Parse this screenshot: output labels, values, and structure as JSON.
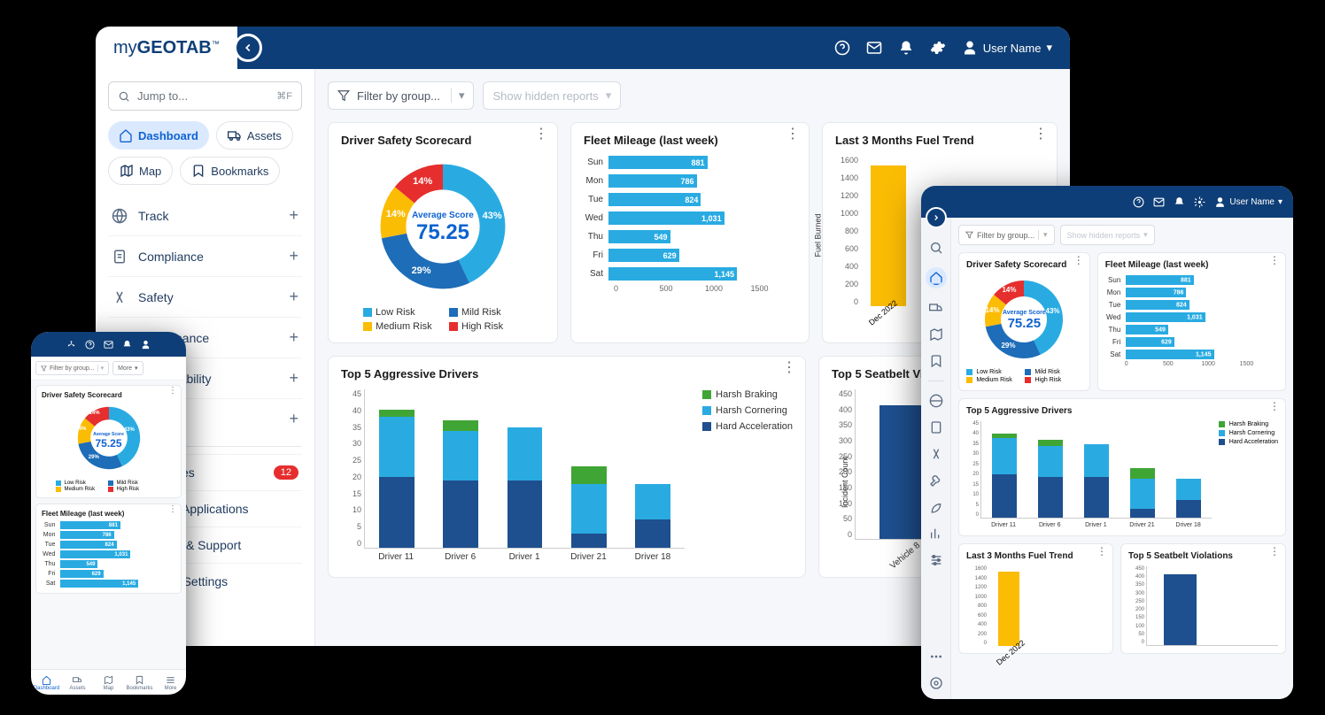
{
  "colors": {
    "brand": "#0e3e77",
    "accent": "#0e62d1",
    "lowRisk": "#29abe2",
    "mildRisk": "#1e6db8",
    "mediumRisk": "#fbbc04",
    "highRisk": "#e62e2e",
    "harshBraking": "#3fa535",
    "harshCornering": "#29abe2",
    "hardAccel": "#1e4f8f",
    "fuelBar": "#fbbc04",
    "background": "#f5f7fa"
  },
  "logo": {
    "prefix": "my",
    "main": "GEOTAB",
    "tm": "™"
  },
  "topbar": {
    "userName": "User Name"
  },
  "sidebar": {
    "searchPlaceholder": "Jump to...",
    "searchKbd": "⌘F",
    "tabs": [
      {
        "label": "Dashboard",
        "icon": "home",
        "active": true
      },
      {
        "label": "Assets",
        "icon": "truck",
        "active": false
      },
      {
        "label": "Map",
        "icon": "map",
        "active": false
      },
      {
        "label": "Bookmarks",
        "icon": "bookmark",
        "active": false
      }
    ],
    "nav": [
      {
        "label": "Track",
        "icon": "globe"
      },
      {
        "label": "Compliance",
        "icon": "clipboard"
      },
      {
        "label": "Safety",
        "icon": "safety"
      },
      {
        "label": "Maintenance",
        "icon": "wrench"
      },
      {
        "label": "Sustainability",
        "icon": "leaf"
      },
      {
        "label": "Reports",
        "icon": "chart"
      }
    ],
    "bottom": [
      {
        "label": "Messages",
        "badge": "12"
      },
      {
        "label": "Geotab Applications"
      },
      {
        "label": "Training & Support"
      },
      {
        "label": "System Settings"
      }
    ]
  },
  "filters": {
    "filterLabel": "Filter by group...",
    "hiddenLabel": "Show hidden reports"
  },
  "donut": {
    "title": "Driver Safety Scorecard",
    "centerLabel": "Average Score",
    "centerValue": "75.25",
    "slices": [
      {
        "label": "Low Risk",
        "pct": 43,
        "color": "#29abe2"
      },
      {
        "label": "Mild Risk",
        "pct": 29,
        "color": "#1e6db8"
      },
      {
        "label": "Medium Risk",
        "pct": 14,
        "color": "#fbbc04"
      },
      {
        "label": "High Risk",
        "pct": 14,
        "color": "#e62e2e"
      }
    ],
    "legend": [
      "Low Risk",
      "Mild Risk",
      "Medium Risk",
      "High Risk"
    ]
  },
  "mileage": {
    "title": "Fleet Mileage (last week)",
    "rows": [
      {
        "day": "Sun",
        "value": 881
      },
      {
        "day": "Mon",
        "value": 786
      },
      {
        "day": "Tue",
        "value": 824
      },
      {
        "day": "Wed",
        "value": 1031,
        "display": "1,031"
      },
      {
        "day": "Thu",
        "value": 549
      },
      {
        "day": "Fri",
        "value": 629
      },
      {
        "day": "Sat",
        "value": 1145,
        "display": "1,145"
      }
    ],
    "xticks": [
      "0",
      "500",
      "1000",
      "1500"
    ],
    "xmax": 1500
  },
  "fuel": {
    "title": "Last 3 Months Fuel Trend",
    "ylabel": "Fuel Burned",
    "yticks": [
      "1600",
      "1400",
      "1200",
      "1000",
      "800",
      "600",
      "400",
      "200",
      "0"
    ],
    "ymax": 1600,
    "bars": [
      {
        "label": "Dec 2022",
        "value": 1500
      }
    ]
  },
  "aggressive": {
    "title": "Top 5 Aggressive Drivers",
    "ymax": 45,
    "yticks": [
      "45",
      "40",
      "35",
      "30",
      "25",
      "20",
      "15",
      "10",
      "5",
      "0"
    ],
    "legend": [
      "Harsh Braking",
      "Harsh Cornering",
      "Hard Acceleration"
    ],
    "columns": [
      {
        "label": "Driver 11",
        "braking": 2,
        "cornering": 17,
        "accel": 20
      },
      {
        "label": "Driver 6",
        "braking": 3,
        "cornering": 14,
        "accel": 19
      },
      {
        "label": "Driver 1",
        "braking": 0,
        "cornering": 15,
        "accel": 19
      },
      {
        "label": "Driver 21",
        "braking": 5,
        "cornering": 14,
        "accel": 4
      },
      {
        "label": "Driver 18",
        "braking": 0,
        "cornering": 10,
        "accel": 8
      }
    ]
  },
  "seatbelt": {
    "title": "Top 5 Seatbelt Violations",
    "titleShort": "Top 5 Seatbelt Vio",
    "ylabel": "Incident Count",
    "ymax": 450,
    "yticks": [
      "450",
      "400",
      "350",
      "300",
      "250",
      "200",
      "150",
      "100",
      "50",
      "0"
    ],
    "columns": [
      {
        "label": "Vehicle 8",
        "value": 400
      },
      {
        "label": "Vehicle",
        "value": 0
      }
    ]
  },
  "phone": {
    "moreLabel": "More",
    "tabs": [
      "Dashboard",
      "Assets",
      "Map",
      "Bookmarks",
      "More"
    ]
  }
}
